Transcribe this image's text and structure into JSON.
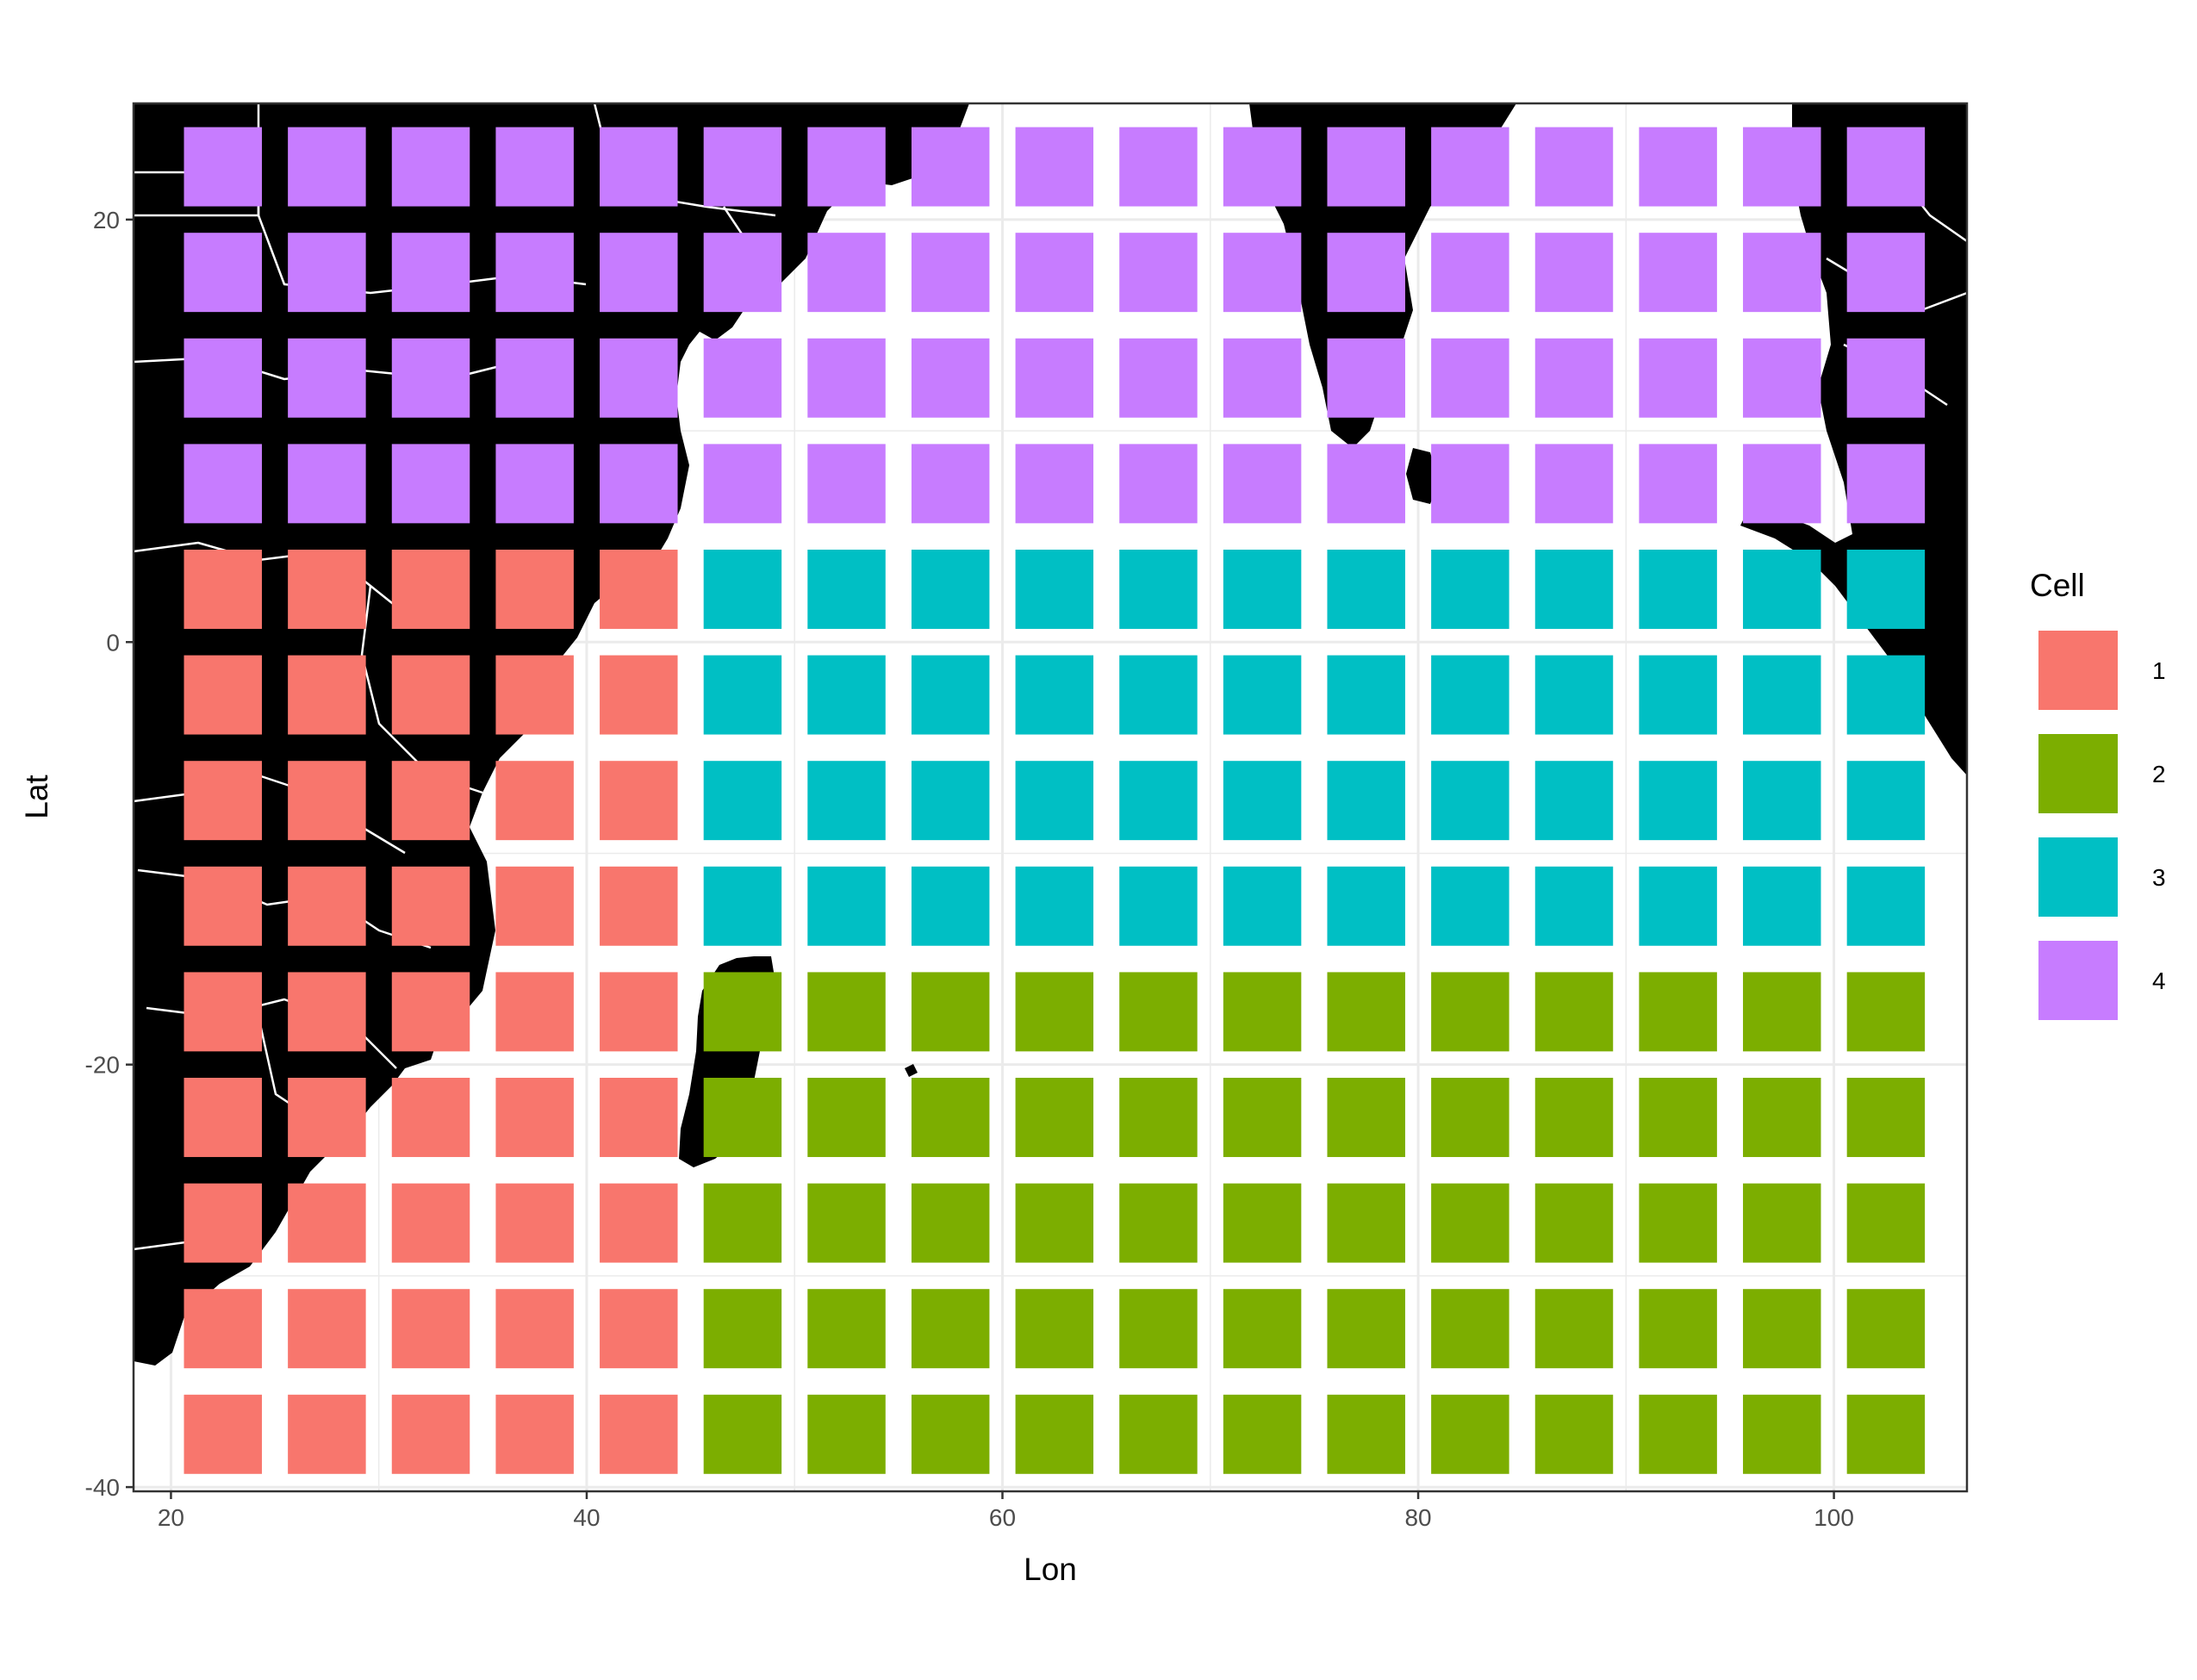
{
  "chart_data": {
    "type": "heatmap",
    "title": "",
    "xlabel": "Lon",
    "ylabel": "Lat",
    "xlim": [
      18.2,
      106.4
    ],
    "ylim": [
      -40.2,
      25.5
    ],
    "x_ticks": [
      20,
      40,
      60,
      80,
      100
    ],
    "y_ticks": [
      20,
      0,
      -20,
      -40
    ],
    "x_tick_labels": [
      "20",
      "40",
      "60",
      "80",
      "100"
    ],
    "y_tick_labels": [
      "20",
      "0",
      "-20",
      "-40"
    ],
    "grid": true,
    "cell_size_deg": 5,
    "tile_size_deg": 3.75,
    "lon_centers": [
      22.5,
      27.5,
      32.5,
      37.5,
      42.5,
      47.5,
      52.5,
      57.5,
      62.5,
      67.5,
      72.5,
      77.5,
      82.5,
      87.5,
      92.5,
      97.5,
      102.5
    ],
    "lat_centers": [
      22.5,
      17.5,
      12.5,
      7.5,
      2.5,
      -2.5,
      -7.5,
      -12.5,
      -17.5,
      -22.5,
      -27.5,
      -32.5,
      -37.5
    ],
    "cells_by_row": [
      [
        4,
        4,
        4,
        4,
        4,
        4,
        4,
        4,
        4,
        4,
        4,
        4,
        4,
        4,
        4,
        4,
        4
      ],
      [
        4,
        4,
        4,
        4,
        4,
        4,
        4,
        4,
        4,
        4,
        4,
        4,
        4,
        4,
        4,
        4,
        4
      ],
      [
        4,
        4,
        4,
        4,
        4,
        4,
        4,
        4,
        4,
        4,
        4,
        4,
        4,
        4,
        4,
        4,
        4
      ],
      [
        4,
        4,
        4,
        4,
        4,
        4,
        4,
        4,
        4,
        4,
        4,
        4,
        4,
        4,
        4,
        4,
        4
      ],
      [
        1,
        1,
        1,
        1,
        1,
        3,
        3,
        3,
        3,
        3,
        3,
        3,
        3,
        3,
        3,
        3,
        3
      ],
      [
        1,
        1,
        1,
        1,
        1,
        3,
        3,
        3,
        3,
        3,
        3,
        3,
        3,
        3,
        3,
        3,
        3
      ],
      [
        1,
        1,
        1,
        1,
        1,
        3,
        3,
        3,
        3,
        3,
        3,
        3,
        3,
        3,
        3,
        3,
        3
      ],
      [
        1,
        1,
        1,
        1,
        1,
        3,
        3,
        3,
        3,
        3,
        3,
        3,
        3,
        3,
        3,
        3,
        3
      ],
      [
        1,
        1,
        1,
        1,
        1,
        2,
        2,
        2,
        2,
        2,
        2,
        2,
        2,
        2,
        2,
        2,
        2
      ],
      [
        1,
        1,
        1,
        1,
        1,
        2,
        2,
        2,
        2,
        2,
        2,
        2,
        2,
        2,
        2,
        2,
        2
      ],
      [
        1,
        1,
        1,
        1,
        1,
        2,
        2,
        2,
        2,
        2,
        2,
        2,
        2,
        2,
        2,
        2,
        2
      ],
      [
        1,
        1,
        1,
        1,
        1,
        2,
        2,
        2,
        2,
        2,
        2,
        2,
        2,
        2,
        2,
        2,
        2
      ],
      [
        1,
        1,
        1,
        1,
        1,
        2,
        2,
        2,
        2,
        2,
        2,
        2,
        2,
        2,
        2,
        2,
        2
      ]
    ],
    "legend": {
      "title": "Cell",
      "placement": "right",
      "entries": [
        {
          "label": "1",
          "color": "#F8766D"
        },
        {
          "label": "2",
          "color": "#7CAE00"
        },
        {
          "label": "3",
          "color": "#00BFC4"
        },
        {
          "label": "4",
          "color": "#C77CFF"
        }
      ]
    },
    "land_color": "#000000",
    "border_color": "#ffffff"
  }
}
